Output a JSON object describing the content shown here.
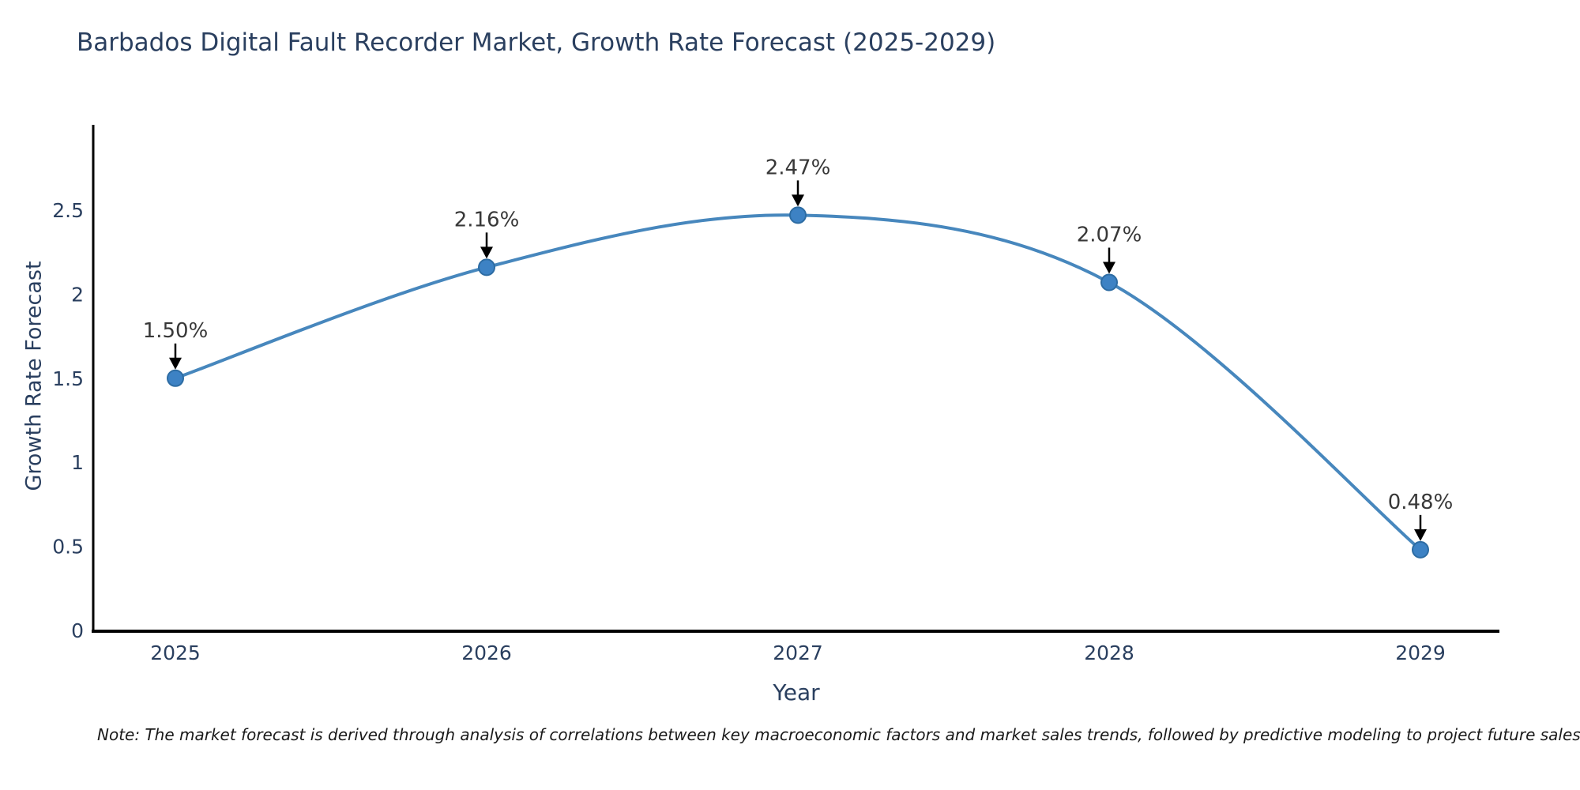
{
  "title": "Barbados Digital Fault Recorder Market, Growth Rate Forecast (2025-2029)",
  "note": "Note: The market forecast is derived through analysis of correlations between key macroeconomic factors and market sales trends, followed by predictive modeling to project future sales",
  "chart_data": {
    "type": "line",
    "line_shape": "spline",
    "grid": false,
    "legend": "none",
    "title": "Barbados Digital Fault Recorder Market, Growth Rate Forecast (2025-2029)",
    "xlabel": "Year",
    "ylabel": "Growth Rate Forecast",
    "categories": [
      "2025",
      "2026",
      "2027",
      "2028",
      "2029"
    ],
    "series": [
      {
        "name": "Growth Rate Forecast",
        "values": [
          1.5,
          2.16,
          2.47,
          2.07,
          0.48
        ]
      }
    ],
    "point_labels": [
      "1.50%",
      "2.16%",
      "2.47%",
      "2.07%",
      "0.48%"
    ],
    "ylim": [
      0,
      3.0
    ],
    "yticks": [
      0,
      0.5,
      1,
      1.5,
      2,
      2.5
    ],
    "ytick_labels": [
      "0",
      "0.5",
      "1",
      "1.5",
      "2",
      "2.5"
    ],
    "colors": {
      "line": "#4787bd",
      "marker_fill": "#3d82c4",
      "marker_edge": "#2d6ca3",
      "axis": "#000000",
      "tick_text": "#2a3f5f",
      "title_text": "#2a3f5f",
      "annotation_text": "#383838",
      "annotation_arrow": "#000000",
      "background": "#ffffff"
    }
  }
}
